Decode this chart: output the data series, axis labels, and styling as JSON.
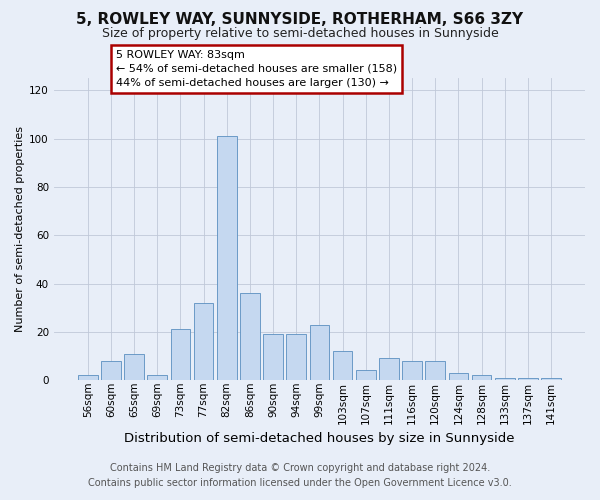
{
  "title": "5, ROWLEY WAY, SUNNYSIDE, ROTHERHAM, S66 3ZY",
  "subtitle": "Size of property relative to semi-detached houses in Sunnyside",
  "xlabel": "Distribution of semi-detached houses by size in Sunnyside",
  "ylabel": "Number of semi-detached properties",
  "footer_line1": "Contains HM Land Registry data © Crown copyright and database right 2024.",
  "footer_line2": "Contains public sector information licensed under the Open Government Licence v3.0.",
  "annotation_line1": "5 ROWLEY WAY: 83sqm",
  "annotation_line2": "← 54% of semi-detached houses are smaller (158)",
  "annotation_line3": "44% of semi-detached houses are larger (130) →",
  "bar_labels": [
    "56sqm",
    "60sqm",
    "65sqm",
    "69sqm",
    "73sqm",
    "77sqm",
    "82sqm",
    "86sqm",
    "90sqm",
    "94sqm",
    "99sqm",
    "103sqm",
    "107sqm",
    "111sqm",
    "116sqm",
    "120sqm",
    "124sqm",
    "128sqm",
    "133sqm",
    "137sqm",
    "141sqm"
  ],
  "bar_values": [
    2,
    8,
    11,
    2,
    21,
    32,
    101,
    36,
    19,
    19,
    23,
    12,
    4,
    9,
    8,
    8,
    3,
    2,
    1,
    1,
    1
  ],
  "highlight_index": 6,
  "bar_color": "#c5d8f0",
  "bar_edge_color": "#5a8fc0",
  "background_color": "#e8eef8",
  "ylim": [
    0,
    125
  ],
  "yticks": [
    0,
    20,
    40,
    60,
    80,
    100,
    120
  ],
  "grid_color": "#c0c8d8",
  "annotation_box_edge": "#aa0000",
  "title_fontsize": 11,
  "subtitle_fontsize": 9,
  "xlabel_fontsize": 9.5,
  "ylabel_fontsize": 8,
  "tick_fontsize": 7.5,
  "annotation_fontsize": 8,
  "footer_fontsize": 7
}
